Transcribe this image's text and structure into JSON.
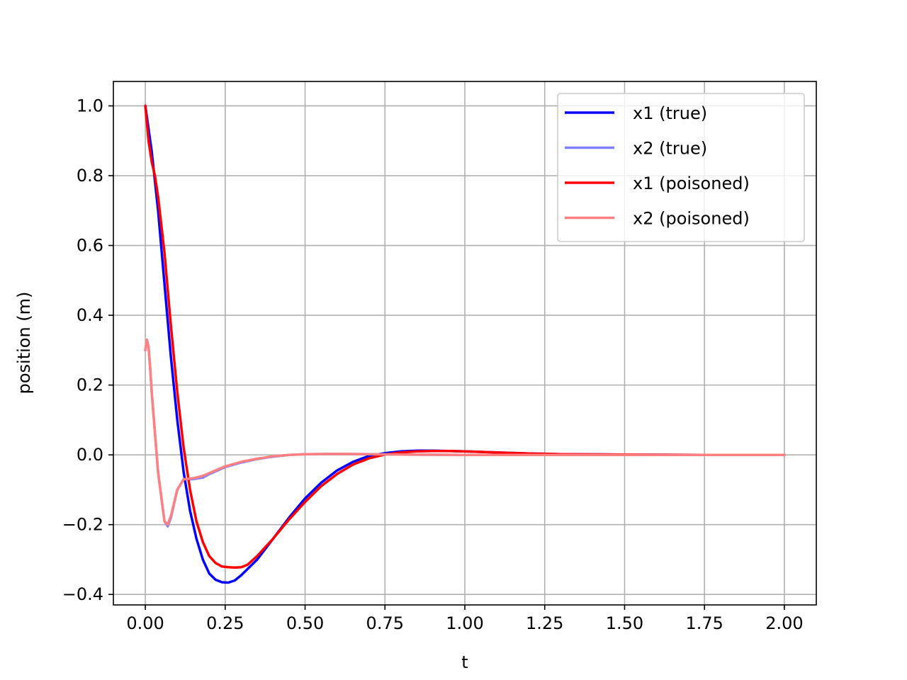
{
  "chart_data": {
    "type": "line",
    "title": "",
    "xlabel": "t",
    "ylabel": "position (m)",
    "xlim": [
      -0.1,
      2.1
    ],
    "ylim": [
      -0.43,
      1.07
    ],
    "xticks": [
      0.0,
      0.25,
      0.5,
      0.75,
      1.0,
      1.25,
      1.5,
      1.75,
      2.0
    ],
    "xtick_labels": [
      "0.00",
      "0.25",
      "0.50",
      "0.75",
      "1.00",
      "1.25",
      "1.50",
      "1.75",
      "2.00"
    ],
    "yticks": [
      -0.4,
      -0.2,
      0.0,
      0.2,
      0.4,
      0.6,
      0.8,
      1.0
    ],
    "ytick_labels": [
      "−0.4",
      "−0.2",
      "0.0",
      "0.2",
      "0.4",
      "0.6",
      "0.8",
      "1.0"
    ],
    "grid": true,
    "legend_position": "upper-right",
    "series": [
      {
        "name": "x1 (true)",
        "color": "#0000ff",
        "x": [
          0,
          0.02,
          0.04,
          0.06,
          0.08,
          0.1,
          0.12,
          0.14,
          0.16,
          0.18,
          0.2,
          0.22,
          0.24,
          0.26,
          0.28,
          0.3,
          0.35,
          0.4,
          0.45,
          0.5,
          0.55,
          0.6,
          0.65,
          0.7,
          0.75,
          0.8,
          0.85,
          0.9,
          0.95,
          1.0,
          1.1,
          1.2,
          1.3,
          1.5,
          1.75,
          2.0
        ],
        "y": [
          1.0,
          0.87,
          0.7,
          0.49,
          0.28,
          0.1,
          -0.05,
          -0.16,
          -0.24,
          -0.3,
          -0.34,
          -0.358,
          -0.365,
          -0.366,
          -0.36,
          -0.345,
          -0.3,
          -0.24,
          -0.18,
          -0.125,
          -0.08,
          -0.045,
          -0.02,
          -0.003,
          0.005,
          0.01,
          0.012,
          0.012,
          0.011,
          0.01,
          0.007,
          0.004,
          0.002,
          0.001,
          0.0,
          0.0
        ]
      },
      {
        "name": "x2 (true)",
        "color": "#8080ff",
        "x": [
          0,
          0.005,
          0.01,
          0.015,
          0.02,
          0.04,
          0.06,
          0.07,
          0.08,
          0.1,
          0.12,
          0.14,
          0.16,
          0.18,
          0.2,
          0.25,
          0.3,
          0.35,
          0.4,
          0.45,
          0.5,
          0.6,
          0.7,
          0.8,
          1.0,
          1.25,
          1.5,
          1.75,
          2.0
        ],
        "y": [
          0.3,
          0.33,
          0.31,
          0.25,
          0.18,
          -0.05,
          -0.19,
          -0.205,
          -0.18,
          -0.1,
          -0.07,
          -0.07,
          -0.068,
          -0.065,
          -0.055,
          -0.035,
          -0.022,
          -0.012,
          -0.005,
          0.0,
          0.002,
          0.003,
          0.002,
          0.001,
          0.0,
          0.0,
          0.0,
          0.0,
          0.0
        ]
      },
      {
        "name": "x1 (poisoned)",
        "color": "#ff0000",
        "x": [
          0,
          0.01,
          0.02,
          0.03,
          0.04,
          0.06,
          0.08,
          0.1,
          0.12,
          0.14,
          0.16,
          0.18,
          0.2,
          0.22,
          0.24,
          0.26,
          0.28,
          0.3,
          0.32,
          0.35,
          0.4,
          0.45,
          0.5,
          0.55,
          0.6,
          0.65,
          0.7,
          0.75,
          0.8,
          0.85,
          0.9,
          0.95,
          1.0,
          1.1,
          1.2,
          1.3,
          1.5,
          1.75,
          2.0
        ],
        "y": [
          1.0,
          0.9,
          0.84,
          0.8,
          0.74,
          0.58,
          0.37,
          0.18,
          0.02,
          -0.1,
          -0.19,
          -0.25,
          -0.29,
          -0.31,
          -0.32,
          -0.322,
          -0.323,
          -0.322,
          -0.315,
          -0.29,
          -0.24,
          -0.185,
          -0.135,
          -0.09,
          -0.055,
          -0.028,
          -0.01,
          0.001,
          0.007,
          0.01,
          0.011,
          0.011,
          0.01,
          0.007,
          0.004,
          0.002,
          0.001,
          0.0,
          0.0
        ]
      },
      {
        "name": "x2 (poisoned)",
        "color": "#ff8080",
        "x": [
          0,
          0.005,
          0.01,
          0.015,
          0.02,
          0.04,
          0.06,
          0.07,
          0.08,
          0.1,
          0.12,
          0.14,
          0.16,
          0.18,
          0.2,
          0.25,
          0.3,
          0.35,
          0.4,
          0.45,
          0.5,
          0.6,
          0.7,
          0.8,
          1.0,
          1.25,
          1.5,
          1.75,
          2.0
        ],
        "y": [
          0.3,
          0.33,
          0.31,
          0.25,
          0.18,
          -0.05,
          -0.19,
          -0.2,
          -0.175,
          -0.1,
          -0.07,
          -0.068,
          -0.065,
          -0.06,
          -0.052,
          -0.033,
          -0.02,
          -0.011,
          -0.004,
          0.0,
          0.002,
          0.003,
          0.002,
          0.001,
          0.0,
          0.0,
          0.0,
          0.0,
          0.0
        ]
      }
    ]
  }
}
